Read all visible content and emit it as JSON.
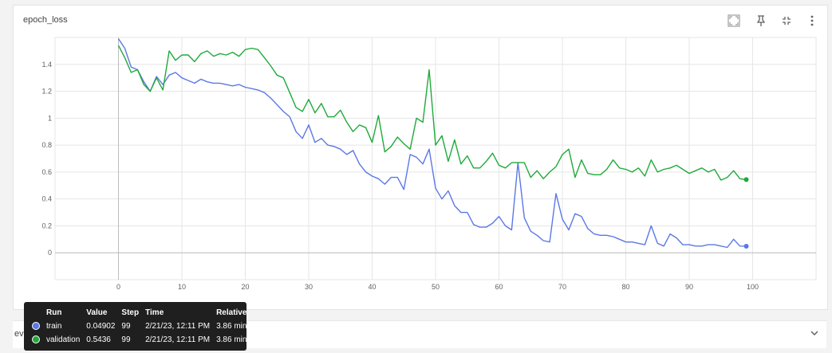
{
  "card": {
    "title": "epoch_loss"
  },
  "toolbar": {
    "icons": [
      "fullscreen-icon",
      "pin-icon",
      "fit-domain-icon",
      "more-vert-icon"
    ]
  },
  "bottom": {
    "label": "eva"
  },
  "colors": {
    "train": "#5b78e6",
    "validation": "#1faa3a",
    "grid": "#e6e6e6"
  },
  "chart_data": {
    "type": "line",
    "title": "epoch_loss",
    "xlabel": "",
    "ylabel": "",
    "xlim": [
      -10,
      110
    ],
    "ylim": [
      -0.2,
      1.6
    ],
    "xticks": [
      0,
      10,
      20,
      30,
      40,
      50,
      60,
      70,
      80,
      90,
      100
    ],
    "xtick_labels": [
      "0",
      "10",
      "20",
      "30",
      "40",
      "50",
      "60",
      "70",
      "80",
      "90",
      "100"
    ],
    "yticks": [
      0,
      0.2,
      0.4,
      0.6,
      0.8,
      1,
      1.2,
      1.4
    ],
    "ytick_labels": [
      "0",
      "0.2",
      "0.4",
      "0.6",
      "0.8",
      "1",
      "1.2",
      "1.4"
    ],
    "grid": true,
    "series": [
      {
        "name": "train",
        "x": [
          0,
          1,
          2,
          3,
          4,
          5,
          6,
          7,
          8,
          9,
          10,
          11,
          12,
          13,
          14,
          15,
          16,
          17,
          18,
          19,
          20,
          21,
          22,
          23,
          24,
          25,
          26,
          27,
          28,
          29,
          30,
          31,
          32,
          33,
          34,
          35,
          36,
          37,
          38,
          39,
          40,
          41,
          42,
          43,
          44,
          45,
          46,
          47,
          48,
          49,
          50,
          51,
          52,
          53,
          54,
          55,
          56,
          57,
          58,
          59,
          60,
          61,
          62,
          63,
          64,
          65,
          66,
          67,
          68,
          69,
          70,
          71,
          72,
          73,
          74,
          75,
          76,
          77,
          78,
          79,
          80,
          81,
          82,
          83,
          84,
          85,
          86,
          87,
          88,
          89,
          90,
          91,
          92,
          93,
          94,
          95,
          96,
          97,
          98,
          99
        ],
        "values": [
          1.59,
          1.52,
          1.38,
          1.36,
          1.27,
          1.2,
          1.31,
          1.25,
          1.32,
          1.34,
          1.3,
          1.28,
          1.26,
          1.29,
          1.27,
          1.26,
          1.26,
          1.25,
          1.24,
          1.25,
          1.23,
          1.22,
          1.21,
          1.19,
          1.15,
          1.1,
          1.05,
          1.01,
          0.9,
          0.85,
          0.95,
          0.82,
          0.85,
          0.8,
          0.79,
          0.77,
          0.73,
          0.76,
          0.66,
          0.6,
          0.57,
          0.55,
          0.51,
          0.56,
          0.56,
          0.47,
          0.73,
          0.71,
          0.66,
          0.77,
          0.48,
          0.4,
          0.46,
          0.35,
          0.3,
          0.3,
          0.21,
          0.19,
          0.19,
          0.22,
          0.27,
          0.2,
          0.17,
          0.67,
          0.26,
          0.16,
          0.13,
          0.09,
          0.08,
          0.44,
          0.25,
          0.17,
          0.29,
          0.27,
          0.18,
          0.14,
          0.13,
          0.13,
          0.12,
          0.1,
          0.08,
          0.08,
          0.07,
          0.06,
          0.2,
          0.07,
          0.05,
          0.14,
          0.11,
          0.06,
          0.06,
          0.05,
          0.05,
          0.06,
          0.06,
          0.05,
          0.04,
          0.1,
          0.05,
          0.04902
        ]
      },
      {
        "name": "validation",
        "x": [
          0,
          1,
          2,
          3,
          4,
          5,
          6,
          7,
          8,
          9,
          10,
          11,
          12,
          13,
          14,
          15,
          16,
          17,
          18,
          19,
          20,
          21,
          22,
          23,
          24,
          25,
          26,
          27,
          28,
          29,
          30,
          31,
          32,
          33,
          34,
          35,
          36,
          37,
          38,
          39,
          40,
          41,
          42,
          43,
          44,
          45,
          46,
          47,
          48,
          49,
          50,
          51,
          52,
          53,
          54,
          55,
          56,
          57,
          58,
          59,
          60,
          61,
          62,
          63,
          64,
          65,
          66,
          67,
          68,
          69,
          70,
          71,
          72,
          73,
          74,
          75,
          76,
          77,
          78,
          79,
          80,
          81,
          82,
          83,
          84,
          85,
          86,
          87,
          88,
          89,
          90,
          91,
          92,
          93,
          94,
          95,
          96,
          97,
          98,
          99
        ],
        "values": [
          1.54,
          1.45,
          1.34,
          1.36,
          1.25,
          1.2,
          1.3,
          1.21,
          1.5,
          1.43,
          1.47,
          1.47,
          1.42,
          1.48,
          1.5,
          1.46,
          1.48,
          1.47,
          1.49,
          1.46,
          1.51,
          1.52,
          1.51,
          1.45,
          1.39,
          1.32,
          1.3,
          1.19,
          1.08,
          1.05,
          1.14,
          1.04,
          1.11,
          1.01,
          1.01,
          1.06,
          0.97,
          0.9,
          0.95,
          0.93,
          0.82,
          1.02,
          0.75,
          0.79,
          0.86,
          0.81,
          0.77,
          1.0,
          0.97,
          1.36,
          0.8,
          0.87,
          0.68,
          0.84,
          0.66,
          0.72,
          0.63,
          0.63,
          0.68,
          0.74,
          0.65,
          0.63,
          0.67,
          0.67,
          0.67,
          0.56,
          0.61,
          0.55,
          0.6,
          0.64,
          0.73,
          0.77,
          0.56,
          0.69,
          0.59,
          0.58,
          0.58,
          0.62,
          0.69,
          0.63,
          0.62,
          0.6,
          0.63,
          0.57,
          0.69,
          0.6,
          0.62,
          0.63,
          0.65,
          0.62,
          0.59,
          0.61,
          0.63,
          0.6,
          0.62,
          0.54,
          0.56,
          0.61,
          0.55,
          0.5436
        ]
      }
    ]
  },
  "tooltip": {
    "headers": [
      "Run",
      "Value",
      "Step",
      "Time",
      "Relative"
    ],
    "rows": [
      {
        "run": "train",
        "value": "0.04902",
        "step": "99",
        "time": "2/21/23, 12:11 PM",
        "relative": "3.86 min"
      },
      {
        "run": "validation",
        "value": "0.5436",
        "step": "99",
        "time": "2/21/23, 12:11 PM",
        "relative": "3.86 min"
      }
    ]
  }
}
